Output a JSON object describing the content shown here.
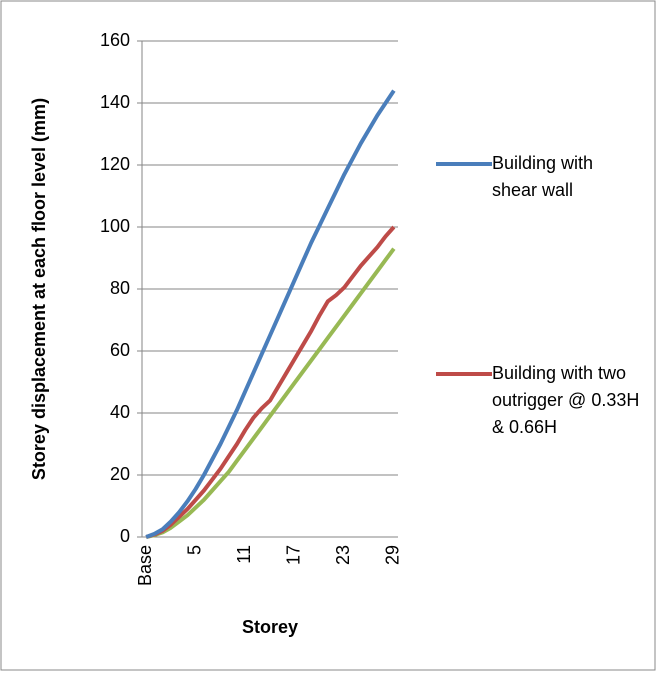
{
  "chart_data": {
    "type": "line",
    "y_label": "Storey displacement at each floor level (mm)",
    "x_label": "Storey",
    "categories": [
      "Base",
      null,
      null,
      null,
      null,
      null,
      "5",
      null,
      null,
      null,
      null,
      null,
      "11",
      null,
      null,
      null,
      null,
      null,
      "17",
      null,
      null,
      null,
      null,
      null,
      "23",
      null,
      null,
      null,
      null,
      null,
      "29"
    ],
    "series": [
      {
        "name": "Building with shear wall",
        "color": "#4a7ebb",
        "values": [
          0,
          1,
          2.5,
          5,
          8,
          11.5,
          15.5,
          20,
          25,
          30,
          35.5,
          41,
          47,
          53,
          59,
          65,
          71,
          77,
          83,
          89,
          95,
          100.5,
          106,
          111.5,
          117,
          122,
          127,
          131.5,
          136,
          140,
          144
        ]
      },
      {
        "name": "Building with two outrigger @ 0.33H & 0.66H",
        "color": "#be4b48",
        "values": [
          0,
          0.8,
          2,
          4,
          6.5,
          9,
          12,
          15,
          18.5,
          22,
          26,
          30,
          34.5,
          38.5,
          41.5,
          44,
          48.5,
          53,
          57.5,
          62,
          66.5,
          71.5,
          76,
          78,
          80.5,
          84,
          87.5,
          90.5,
          93.5,
          97,
          100
        ]
      },
      {
        "name": null,
        "color": "#98b954",
        "values": [
          0,
          0.6,
          1.5,
          3,
          5,
          7,
          9.5,
          12,
          15,
          18,
          21,
          24.6,
          28.2,
          31.8,
          35.4,
          39,
          42.6,
          46.2,
          49.8,
          53.4,
          57,
          60.6,
          64.2,
          67.8,
          71.4,
          75,
          78.6,
          82.2,
          85.8,
          89.4,
          93
        ]
      }
    ],
    "ylim": [
      0,
      160
    ],
    "yticks": [
      0,
      20,
      40,
      60,
      80,
      100,
      120,
      140,
      160
    ],
    "grid": true
  }
}
